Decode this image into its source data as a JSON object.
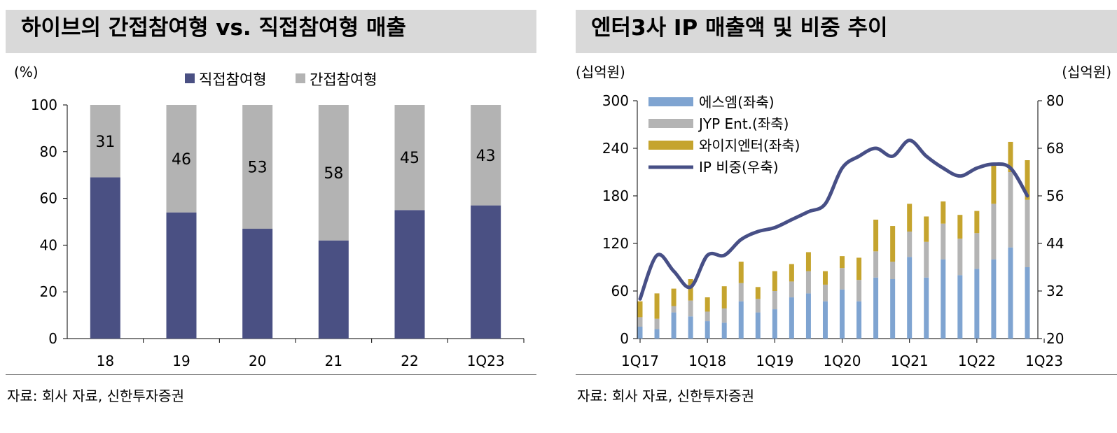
{
  "colors": {
    "direct": "#4a5083",
    "indirect": "#b3b3b3",
    "sm": "#7fa4d1",
    "jyp": "#b4b4b4",
    "yg": "#c5a42e",
    "ip_line": "#474f86",
    "title_bg": "#d9d9d9"
  },
  "left": {
    "title": "하이브의 간접참여형 vs. 직접참여형 매출",
    "source": "자료: 회사 자료, 신한투자증권",
    "unit": "(%)"
  },
  "right": {
    "title": "엔터3사 IP 매출액 및 비중 추이",
    "source": "자료: 회사 자료, 신한투자증권",
    "unit_left": "(십억원)",
    "unit_right": "(십억원)"
  },
  "chart_data": [
    {
      "type": "bar",
      "stacked": true,
      "title": "하이브의 간접참여형 vs. 직접참여형 매출",
      "ylabel": "(%)",
      "categories": [
        "18",
        "19",
        "20",
        "21",
        "22",
        "1Q23"
      ],
      "series": [
        {
          "name": "직접참여형",
          "values": [
            69,
            54,
            47,
            42,
            55,
            57
          ]
        },
        {
          "name": "간접참여형",
          "values": [
            31,
            46,
            53,
            58,
            45,
            43
          ]
        }
      ],
      "data_labels": [
        "31",
        "46",
        "53",
        "58",
        "45",
        "43"
      ],
      "ylim": [
        0,
        100
      ],
      "yticks": [
        0,
        20,
        40,
        60,
        80,
        100
      ],
      "legend": "top"
    },
    {
      "type": "bar",
      "stacked": true,
      "title": "엔터3사 IP 매출액 및 비중 추이",
      "ylabel": "(십억원)",
      "y2label": "(십억원)",
      "x_tick_labels": [
        "1Q17",
        "1Q18",
        "1Q19",
        "1Q20",
        "1Q21",
        "1Q22",
        "1Q23"
      ],
      "x_tick_index": [
        0,
        4,
        8,
        12,
        16,
        20,
        24
      ],
      "ylim": [
        0,
        300
      ],
      "yticks": [
        0,
        60,
        120,
        180,
        240,
        300
      ],
      "y2lim": [
        20,
        80
      ],
      "y2ticks": [
        20,
        32,
        44,
        56,
        68,
        80
      ],
      "legend": "top-left",
      "series": [
        {
          "name": "에스엠(좌축)",
          "axis": "left",
          "values": [
            15,
            12,
            33,
            28,
            22,
            20,
            47,
            33,
            37,
            52,
            57,
            47,
            62,
            47,
            77,
            75,
            103,
            77,
            100,
            80,
            88,
            100,
            115,
            90
          ]
        },
        {
          "name": "JYP Ent.(좌축)",
          "axis": "left",
          "values": [
            12,
            13,
            8,
            20,
            12,
            18,
            23,
            17,
            23,
            20,
            28,
            21,
            27,
            27,
            33,
            22,
            32,
            45,
            45,
            46,
            45,
            70,
            95,
            85
          ]
        },
        {
          "name": "와이지엔터(좌축)",
          "axis": "left",
          "values": [
            20,
            32,
            22,
            27,
            18,
            28,
            27,
            15,
            25,
            22,
            24,
            17,
            15,
            28,
            40,
            45,
            35,
            32,
            28,
            30,
            28,
            50,
            38,
            50
          ]
        },
        {
          "name": "IP 비중(우축)",
          "axis": "right",
          "type": "line",
          "values": [
            30,
            41,
            37,
            33,
            41,
            41,
            45,
            47,
            48,
            50,
            52,
            54,
            63,
            66,
            68,
            66,
            70,
            66,
            63,
            61,
            63,
            64,
            63,
            56
          ]
        }
      ]
    }
  ]
}
